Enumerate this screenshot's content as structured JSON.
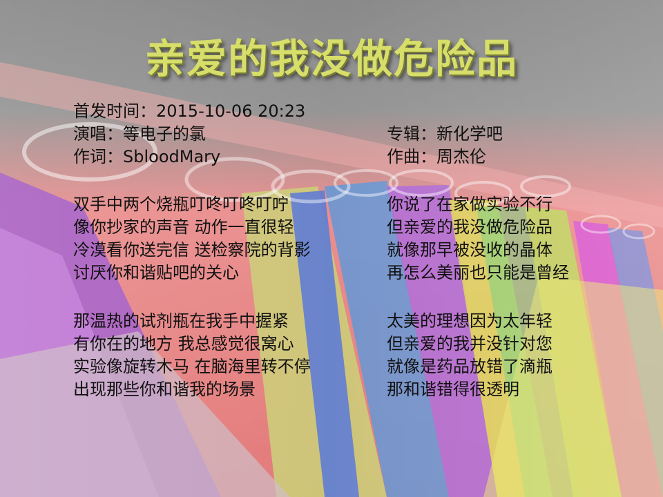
{
  "title": "亲爱的我没做危险品",
  "meta": {
    "date": "首发时间：2015-10-06 20:23",
    "singer": "演唱：等电子的氯",
    "lyricist": "作词：SbloodMary",
    "album": "专辑：新化学吧",
    "composer": "作曲：周杰伦"
  },
  "verse1_left": [
    "双手中两个烧瓶叮咚叮咚叮咛",
    "像你抄家的声音 动作一直很轻",
    "冷漠看你送完信 送检察院的背影",
    "讨厌你和谐贴吧的关心"
  ],
  "verse1_right": [
    "你说了在家做实验不行",
    "但亲爱的我没做危险品",
    "就像那早被没收的晶体",
    "再怎么美丽也只能是曾经"
  ],
  "verse2_left": [
    "那温热的试剂瓶在我手中握紧",
    "有你在的地方 我总感觉很窝心",
    "实验像旋转木马 在脑海里转不停",
    "出现那些你和谐我的场景"
  ],
  "verse2_right": [
    "太美的理想因为太年轻",
    "但亲爱的我并没针对您",
    "就像是药品放错了滴瓶",
    "那和谐错得很透明"
  ]
}
